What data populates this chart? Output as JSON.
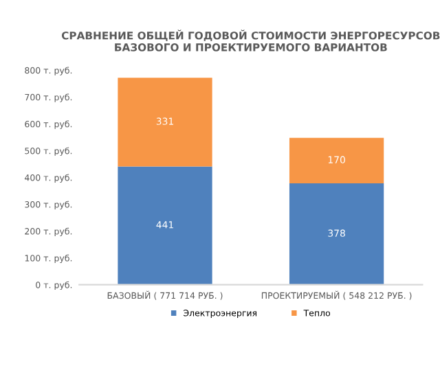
{
  "chart_data": {
    "type": "bar",
    "title": "СРАВНЕНИЕ ОБЩЕЙ ГОДОВОЙ СТОИМОСТИ ЭНЕРГОРЕСУРСОВ\nБАЗОВОГО И ПРОЕКТИРУЕМОГО ВАРИАНТОВ",
    "categories": [
      "БАЗОВЫЙ ( 771 714 РУБ. )",
      "ПРОЕКТИРУЕМЫЙ ( 548 212 РУБ. )"
    ],
    "stacked": true,
    "data_labels": true,
    "legend": "bottom",
    "series": [
      {
        "name": "Электроэнергия",
        "color": "#4f81bd",
        "values": [
          441,
          378
        ]
      },
      {
        "name": "Тепло",
        "color": "#f79646",
        "values": [
          331,
          170
        ]
      }
    ],
    "ylim": [
      0,
      800
    ],
    "yticks": [
      {
        "value": 0,
        "label": "0 т. руб."
      },
      {
        "value": 100,
        "label": "100 т. руб."
      },
      {
        "value": 200,
        "label": "200 т. руб."
      },
      {
        "value": 300,
        "label": "300 т. руб."
      },
      {
        "value": 400,
        "label": "400 т. руб."
      },
      {
        "value": 500,
        "label": "500 т. руб."
      },
      {
        "value": 600,
        "label": "600 т. руб."
      },
      {
        "value": 700,
        "label": "700 т. руб."
      },
      {
        "value": 800,
        "label": "800 т. руб."
      }
    ]
  }
}
